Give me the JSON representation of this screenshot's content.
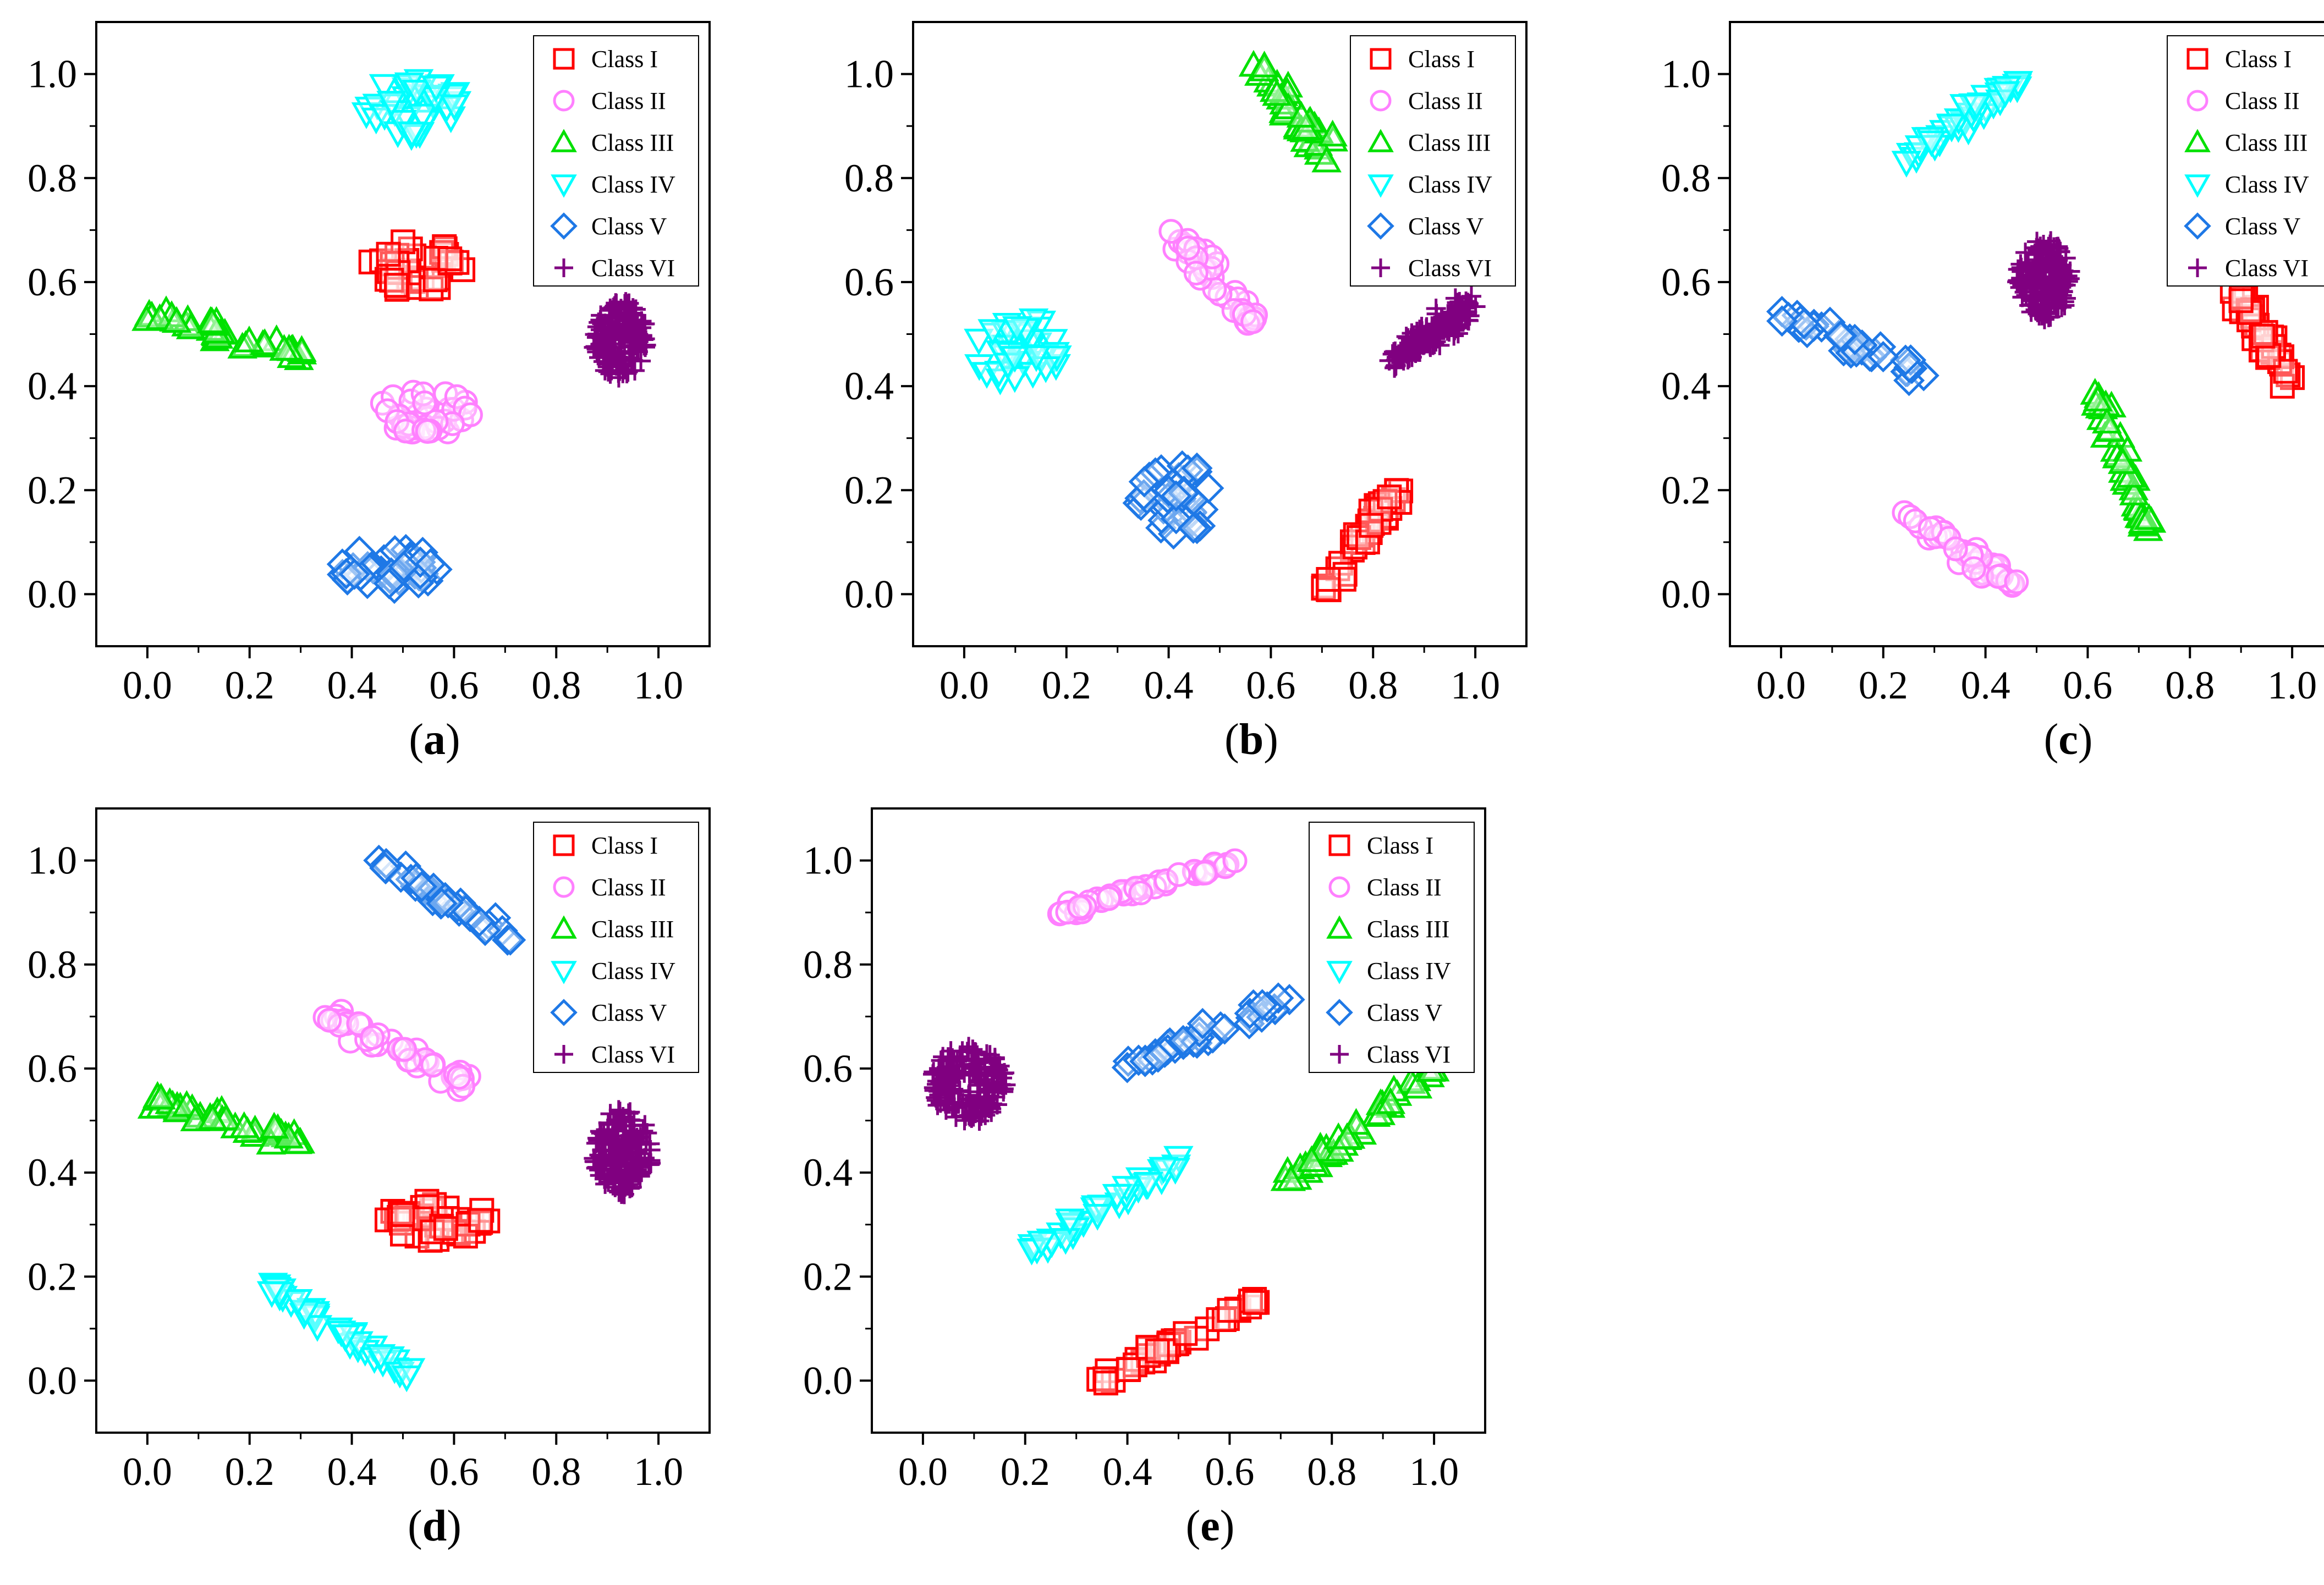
{
  "figure": {
    "panels": [
      {
        "label": "a"
      },
      {
        "label": "b"
      },
      {
        "label": "c"
      },
      {
        "label": "d"
      },
      {
        "label": "e"
      }
    ]
  },
  "legend": {
    "entries": [
      {
        "name": "Class I",
        "marker": "square",
        "color": "#ff0000"
      },
      {
        "name": "Class II",
        "marker": "circle",
        "color": "#ff80ff"
      },
      {
        "name": "Class III",
        "marker": "triangle-up",
        "color": "#00e000"
      },
      {
        "name": "Class IV",
        "marker": "triangle-down",
        "color": "#00ffff"
      },
      {
        "name": "Class V",
        "marker": "diamond",
        "color": "#1e78e6"
      },
      {
        "name": "Class VI",
        "marker": "plus",
        "color": "#800080"
      }
    ]
  },
  "chart_data": [
    {
      "type": "scatter",
      "panel": "a",
      "xlim": [
        -0.1,
        1.1
      ],
      "ylim": [
        -0.1,
        1.1
      ],
      "xticks": [
        "0.0",
        "0.2",
        "0.4",
        "0.6",
        "0.8",
        "1.0"
      ],
      "yticks": [
        "0.0",
        "0.2",
        "0.4",
        "0.6",
        "0.8",
        "1.0"
      ],
      "legend_position": "top-right",
      "series": [
        {
          "name": "Class I",
          "x_range": [
            0.4,
            0.64
          ],
          "y_range": [
            0.57,
            0.69
          ],
          "shape": "blob"
        },
        {
          "name": "Class II",
          "x_range": [
            0.42,
            0.67
          ],
          "y_range": [
            0.29,
            0.4
          ],
          "shape": "blob"
        },
        {
          "name": "Class III",
          "line": [
            [
              0.0,
              0.54
            ],
            [
              0.31,
              0.46
            ]
          ],
          "spread": 0.03
        },
        {
          "name": "Class IV",
          "x_range": [
            0.4,
            0.64
          ],
          "y_range": [
            0.87,
            1.0
          ],
          "shape": "blob"
        },
        {
          "name": "Class V",
          "x_range": [
            0.35,
            0.6
          ],
          "y_range": [
            0.0,
            0.1
          ],
          "shape": "blob"
        },
        {
          "name": "Class VI",
          "x_range": [
            0.86,
            0.99
          ],
          "y_range": [
            0.4,
            0.58
          ],
          "shape": "blob"
        }
      ]
    },
    {
      "type": "scatter",
      "panel": "b",
      "xlim": [
        -0.1,
        1.1
      ],
      "ylim": [
        -0.1,
        1.1
      ],
      "xticks": [
        "0.0",
        "0.2",
        "0.4",
        "0.6",
        "0.8",
        "1.0"
      ],
      "yticks": [
        "0.0",
        "0.2",
        "0.4",
        "0.6",
        "0.8",
        "1.0"
      ],
      "legend_position": "top-right",
      "series": [
        {
          "name": "Class I",
          "line": [
            [
              0.7,
              0.0
            ],
            [
              0.85,
              0.2
            ]
          ],
          "spread": 0.05
        },
        {
          "name": "Class II",
          "line": [
            [
              0.42,
              0.68
            ],
            [
              0.57,
              0.52
            ]
          ],
          "spread": 0.05
        },
        {
          "name": "Class III",
          "line": [
            [
              0.57,
              1.02
            ],
            [
              0.72,
              0.84
            ]
          ],
          "spread": 0.05
        },
        {
          "name": "Class IV",
          "x_range": [
            0.0,
            0.21
          ],
          "y_range": [
            0.39,
            0.55
          ],
          "shape": "blob"
        },
        {
          "name": "Class V",
          "x_range": [
            0.32,
            0.51
          ],
          "y_range": [
            0.1,
            0.27
          ],
          "shape": "blob"
        },
        {
          "name": "Class VI",
          "line": [
            [
              0.84,
              0.45
            ],
            [
              0.99,
              0.55
            ]
          ],
          "spread": 0.05
        }
      ]
    },
    {
      "type": "scatter",
      "panel": "c",
      "xlim": [
        -0.1,
        1.1
      ],
      "ylim": [
        -0.1,
        1.1
      ],
      "xticks": [
        "0.0",
        "0.2",
        "0.4",
        "0.6",
        "0.8",
        "1.0"
      ],
      "yticks": [
        "0.0",
        "0.2",
        "0.4",
        "0.6",
        "0.8",
        "1.0"
      ],
      "legend_position": "top-right",
      "series": [
        {
          "name": "Class I",
          "line": [
            [
              0.87,
              0.62
            ],
            [
              1.0,
              0.4
            ]
          ],
          "spread": 0.04
        },
        {
          "name": "Class II",
          "line": [
            [
              0.25,
              0.16
            ],
            [
              0.47,
              0.0
            ]
          ],
          "spread": 0.04
        },
        {
          "name": "Class III",
          "line": [
            [
              0.61,
              0.4
            ],
            [
              0.72,
              0.12
            ]
          ],
          "spread": 0.04
        },
        {
          "name": "Class IV",
          "line": [
            [
              0.25,
              0.83
            ],
            [
              0.47,
              1.0
            ]
          ],
          "spread": 0.04
        },
        {
          "name": "Class V",
          "line": [
            [
              0.0,
              0.54
            ],
            [
              0.27,
              0.42
            ]
          ],
          "spread": 0.04
        },
        {
          "name": "Class VI",
          "x_range": [
            0.45,
            0.58
          ],
          "y_range": [
            0.51,
            0.7
          ],
          "shape": "blob"
        }
      ]
    },
    {
      "type": "scatter",
      "panel": "d",
      "xlim": [
        -0.1,
        1.1
      ],
      "ylim": [
        -0.1,
        1.1
      ],
      "xticks": [
        "0.0",
        "0.2",
        "0.4",
        "0.6",
        "0.8",
        "1.0"
      ],
      "yticks": [
        "0.0",
        "0.2",
        "0.4",
        "0.6",
        "0.8",
        "1.0"
      ],
      "legend_position": "top-right",
      "series": [
        {
          "name": "Class I",
          "x_range": [
            0.44,
            0.7
          ],
          "y_range": [
            0.26,
            0.36
          ],
          "shape": "blob"
        },
        {
          "name": "Class II",
          "line": [
            [
              0.36,
              0.7
            ],
            [
              0.62,
              0.57
            ]
          ],
          "spread": 0.04
        },
        {
          "name": "Class III",
          "line": [
            [
              0.0,
              0.54
            ],
            [
              0.31,
              0.46
            ]
          ],
          "spread": 0.03
        },
        {
          "name": "Class IV",
          "line": [
            [
              0.24,
              0.18
            ],
            [
              0.52,
              0.0
            ]
          ],
          "spread": 0.03
        },
        {
          "name": "Class V",
          "line": [
            [
              0.45,
              1.0
            ],
            [
              0.72,
              0.84
            ]
          ],
          "spread": 0.03
        },
        {
          "name": "Class VI",
          "x_range": [
            0.86,
            1.0
          ],
          "y_range": [
            0.34,
            0.54
          ],
          "shape": "blob"
        }
      ]
    },
    {
      "type": "scatter",
      "panel": "e",
      "xlim": [
        -0.1,
        1.1
      ],
      "ylim": [
        -0.1,
        1.1
      ],
      "xticks": [
        "0.0",
        "0.2",
        "0.4",
        "0.6",
        "0.8",
        "1.0"
      ],
      "yticks": [
        "0.0",
        "0.2",
        "0.4",
        "0.6",
        "0.8",
        "1.0"
      ],
      "legend_position": "top-right",
      "series": [
        {
          "name": "Class I",
          "line": [
            [
              0.35,
              0.0
            ],
            [
              0.66,
              0.16
            ]
          ],
          "spread": 0.03
        },
        {
          "name": "Class II",
          "line": [
            [
              0.27,
              0.9
            ],
            [
              0.61,
              1.0
            ]
          ],
          "spread": 0.02
        },
        {
          "name": "Class III",
          "line": [
            [
              0.71,
              0.38
            ],
            [
              1.0,
              0.6
            ]
          ],
          "spread": 0.03
        },
        {
          "name": "Class IV",
          "line": [
            [
              0.21,
              0.25
            ],
            [
              0.5,
              0.42
            ]
          ],
          "spread": 0.03
        },
        {
          "name": "Class V",
          "line": [
            [
              0.4,
              0.6
            ],
            [
              0.72,
              0.74
            ]
          ],
          "spread": 0.03
        },
        {
          "name": "Class VI",
          "x_range": [
            0.0,
            0.18
          ],
          "y_range": [
            0.48,
            0.66
          ],
          "shape": "blob"
        }
      ]
    }
  ]
}
